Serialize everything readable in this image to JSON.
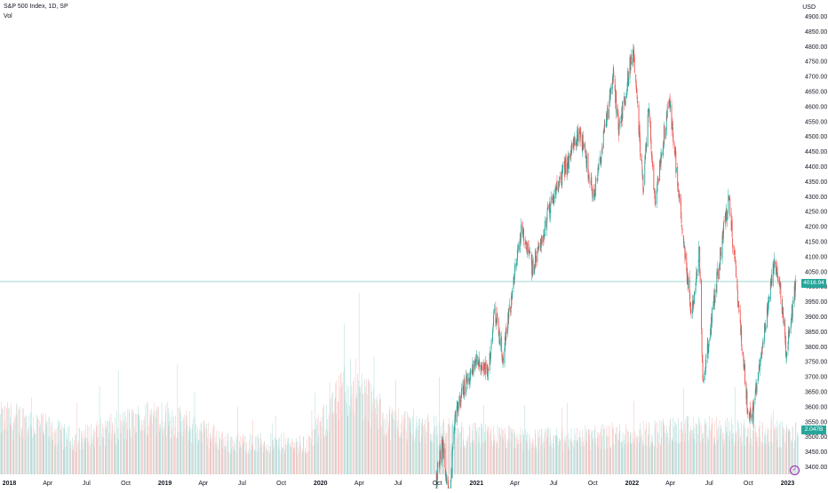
{
  "legend": {
    "title": "S&P 500 Index, 1D, SP",
    "volume_label": "Vol",
    "currency": "USD",
    "last_price": "4016.94",
    "last_volume": "2.047B",
    "tv_icon": "tv-logo-icon"
  },
  "colors": {
    "up": "#26a69a",
    "down": "#ef5350",
    "up_volume": "#b2dfdb",
    "down_volume": "#f8c5c3",
    "price_line": "#26a69a"
  },
  "chart_data": {
    "type": "candlestick",
    "series": [
      {
        "name": "S&P 500 Index, 1D, SP"
      }
    ],
    "ylim": [
      3375,
      4925
    ],
    "y_ticks": [
      "3400.00",
      "3450.00",
      "3500.00",
      "3550.00",
      "3600.00",
      "3650.00",
      "3700.00",
      "3750.00",
      "3800.00",
      "3850.00",
      "3900.00",
      "3950.00",
      "4000.00",
      "4050.00",
      "4100.00",
      "4150.00",
      "4200.00",
      "4250.00",
      "4300.00",
      "4350.00",
      "4400.00",
      "4450.00",
      "4500.00",
      "4550.00",
      "4600.00",
      "4650.00",
      "4700.00",
      "4750.00",
      "4800.00",
      "4850.00",
      "4900.00"
    ],
    "x_ticks": [
      {
        "label": "2018",
        "date": "2018-01-01",
        "bold": true
      },
      {
        "label": "Apr",
        "date": "2018-04-01",
        "bold": false
      },
      {
        "label": "Jul",
        "date": "2018-07-01",
        "bold": false
      },
      {
        "label": "Oct",
        "date": "2018-10-01",
        "bold": false
      },
      {
        "label": "2019",
        "date": "2019-01-01",
        "bold": true
      },
      {
        "label": "Apr",
        "date": "2019-04-01",
        "bold": false
      },
      {
        "label": "Jul",
        "date": "2019-07-01",
        "bold": false
      },
      {
        "label": "Oct",
        "date": "2019-10-01",
        "bold": false
      },
      {
        "label": "2020",
        "date": "2020-01-01",
        "bold": true
      },
      {
        "label": "Apr",
        "date": "2020-04-01",
        "bold": false
      },
      {
        "label": "Jul",
        "date": "2020-07-01",
        "bold": false
      },
      {
        "label": "Oct",
        "date": "2020-10-01",
        "bold": false
      },
      {
        "label": "2021",
        "date": "2021-01-01",
        "bold": true
      },
      {
        "label": "Apr",
        "date": "2021-04-01",
        "bold": false
      },
      {
        "label": "Jul",
        "date": "2021-07-01",
        "bold": false
      },
      {
        "label": "Oct",
        "date": "2021-10-01",
        "bold": false
      },
      {
        "label": "2022",
        "date": "2022-01-01",
        "bold": true
      },
      {
        "label": "Apr",
        "date": "2022-04-01",
        "bold": false
      },
      {
        "label": "Jul",
        "date": "2022-07-01",
        "bold": false
      },
      {
        "label": "Oct",
        "date": "2022-10-01",
        "bold": false
      },
      {
        "label": "2023",
        "date": "2023-01-01",
        "bold": true
      }
    ],
    "x_range": [
      "2017-12-10",
      "2023-01-25"
    ],
    "last_close": 4016.94,
    "price_path": [
      {
        "date": "2020-09-25",
        "close": 3320
      },
      {
        "date": "2020-10-12",
        "close": 3480
      },
      {
        "date": "2020-10-30",
        "close": 3270
      },
      {
        "date": "2020-11-10",
        "close": 3550
      },
      {
        "date": "2020-12-01",
        "close": 3660
      },
      {
        "date": "2020-12-31",
        "close": 3756
      },
      {
        "date": "2021-01-29",
        "close": 3714
      },
      {
        "date": "2021-02-12",
        "close": 3934
      },
      {
        "date": "2021-03-04",
        "close": 3768
      },
      {
        "date": "2021-04-16",
        "close": 4185
      },
      {
        "date": "2021-05-12",
        "close": 4063
      },
      {
        "date": "2021-06-30",
        "close": 4297
      },
      {
        "date": "2021-08-31",
        "close": 4522
      },
      {
        "date": "2021-10-04",
        "close": 4300
      },
      {
        "date": "2021-11-18",
        "close": 4704
      },
      {
        "date": "2021-12-01",
        "close": 4513
      },
      {
        "date": "2022-01-03",
        "close": 4796
      },
      {
        "date": "2022-01-27",
        "close": 4326
      },
      {
        "date": "2022-02-09",
        "close": 4587
      },
      {
        "date": "2022-02-24",
        "close": 4288
      },
      {
        "date": "2022-03-29",
        "close": 4631
      },
      {
        "date": "2022-05-20",
        "close": 3901
      },
      {
        "date": "2022-06-08",
        "close": 4115
      },
      {
        "date": "2022-06-16",
        "close": 3666
      },
      {
        "date": "2022-07-29",
        "close": 4130
      },
      {
        "date": "2022-08-16",
        "close": 4305
      },
      {
        "date": "2022-09-30",
        "close": 3585
      },
      {
        "date": "2022-10-12",
        "close": 3577
      },
      {
        "date": "2022-11-30",
        "close": 4080
      },
      {
        "date": "2022-12-13",
        "close": 4019
      },
      {
        "date": "2022-12-28",
        "close": 3783
      },
      {
        "date": "2023-01-09",
        "close": 3892
      },
      {
        "date": "2023-01-20",
        "close": 4016.94
      }
    ],
    "volume": {
      "unit": "relative",
      "profile": [
        {
          "date": "2018-02-01",
          "value": 0.55
        },
        {
          "date": "2018-06-01",
          "value": 0.35
        },
        {
          "date": "2018-12-20",
          "value": 0.6
        },
        {
          "date": "2019-06-01",
          "value": 0.32
        },
        {
          "date": "2019-12-01",
          "value": 0.3
        },
        {
          "date": "2020-03-15",
          "value": 0.95
        },
        {
          "date": "2020-06-01",
          "value": 0.55
        },
        {
          "date": "2020-12-01",
          "value": 0.4
        },
        {
          "date": "2021-06-01",
          "value": 0.35
        },
        {
          "date": "2022-06-01",
          "value": 0.45
        },
        {
          "date": "2023-01-20",
          "value": 0.4
        }
      ]
    }
  }
}
